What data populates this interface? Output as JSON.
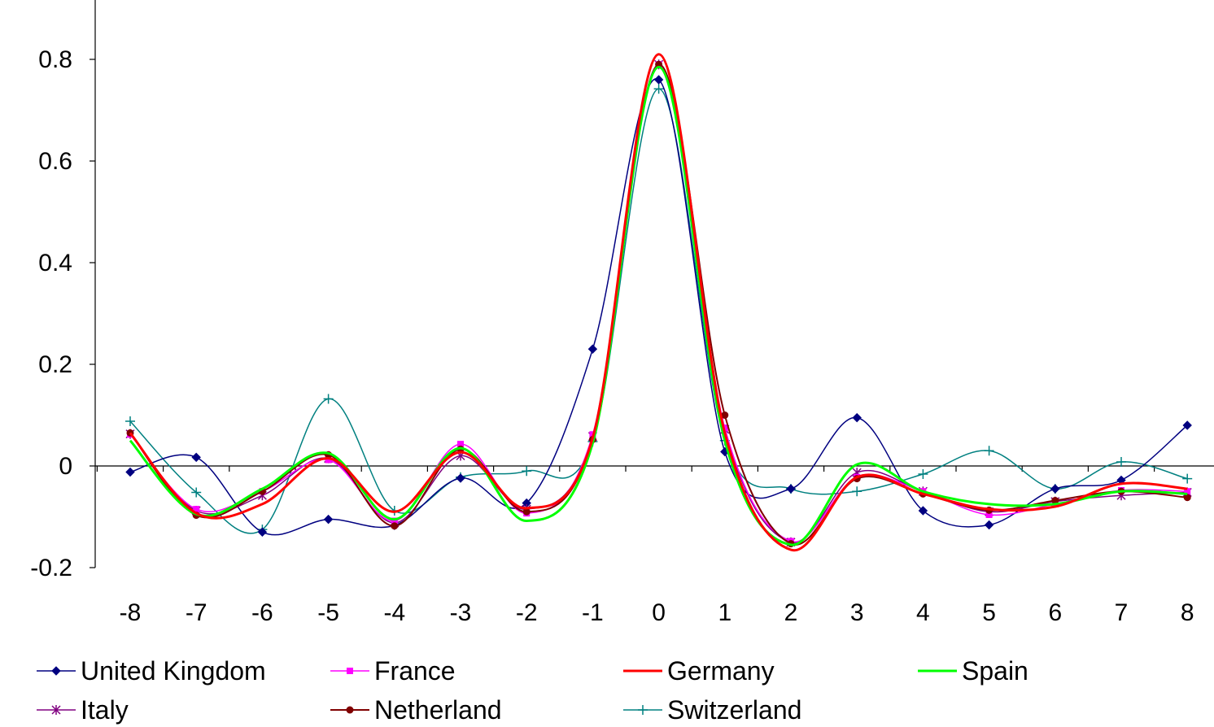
{
  "chart_data": {
    "type": "line",
    "title": "",
    "xlabel": "",
    "ylabel": "",
    "x": [
      -8,
      -7,
      -6,
      -5,
      -4,
      -3,
      -2,
      -1,
      0,
      1,
      2,
      3,
      4,
      5,
      6,
      7,
      8
    ],
    "x_tick_labels": [
      "-8",
      "-7",
      "-6",
      "-5",
      "-4",
      "-3",
      "-2",
      "-1",
      "0",
      "1",
      "2",
      "3",
      "4",
      "5",
      "6",
      "7",
      "8"
    ],
    "y_tick_labels": [
      "-0.2",
      "0",
      "0.2",
      "0.4",
      "0.6",
      "0.8"
    ],
    "y_ticks": [
      -0.2,
      0,
      0.2,
      0.4,
      0.6,
      0.8
    ],
    "ylim": [
      -0.2,
      0.9
    ],
    "xlim": [
      -8.5,
      8.5
    ],
    "grid": false,
    "legend_position": "bottom",
    "series": [
      {
        "name": "United Kingdom",
        "color": "#000080",
        "marker": "diamond",
        "width": 1.5,
        "values": [
          -0.012,
          0.017,
          -0.13,
          -0.105,
          -0.117,
          -0.024,
          -0.073,
          0.23,
          0.76,
          0.028,
          -0.045,
          0.095,
          -0.088,
          -0.116,
          -0.045,
          -0.028,
          0.08
        ]
      },
      {
        "name": "France",
        "color": "#ff00ff",
        "marker": "square",
        "width": 1.5,
        "values": [
          0.062,
          -0.085,
          -0.05,
          0.012,
          -0.108,
          0.043,
          -0.093,
          0.062,
          0.79,
          0.075,
          -0.148,
          -0.022,
          -0.05,
          -0.096,
          -0.075,
          -0.048,
          -0.05
        ]
      },
      {
        "name": "Germany",
        "color": "#ff0000",
        "marker": "none",
        "width": 3,
        "values": [
          0.065,
          -0.093,
          -0.075,
          0.015,
          -0.09,
          0.027,
          -0.083,
          0.055,
          0.81,
          0.065,
          -0.165,
          -0.022,
          -0.055,
          -0.085,
          -0.08,
          -0.035,
          -0.045
        ]
      },
      {
        "name": "Spain",
        "color": "#00ff00",
        "marker": "none",
        "width": 3,
        "values": [
          0.05,
          -0.095,
          -0.045,
          0.025,
          -0.105,
          0.035,
          -0.108,
          0.045,
          0.785,
          0.05,
          -0.155,
          0.003,
          -0.05,
          -0.075,
          -0.075,
          -0.05,
          -0.055
        ]
      },
      {
        "name": "Italy",
        "color": "#800080",
        "marker": "star",
        "width": 1.5,
        "values": [
          0.063,
          -0.088,
          -0.058,
          0.015,
          -0.112,
          0.02,
          -0.085,
          0.058,
          0.79,
          0.072,
          -0.15,
          -0.013,
          -0.05,
          -0.09,
          -0.07,
          -0.058,
          -0.052
        ]
      },
      {
        "name": "Netherland",
        "color": "#800000",
        "marker": "circle",
        "width": 2,
        "values": [
          0.065,
          -0.097,
          -0.05,
          0.022,
          -0.118,
          0.033,
          -0.09,
          0.052,
          0.79,
          0.1,
          -0.153,
          -0.025,
          -0.055,
          -0.087,
          -0.068,
          -0.05,
          -0.062
        ]
      },
      {
        "name": "Switzerland",
        "color": "#008080",
        "marker": "plus",
        "width": 1.5,
        "values": [
          0.088,
          -0.052,
          -0.125,
          0.132,
          -0.088,
          -0.022,
          -0.01,
          0.048,
          0.742,
          0.05,
          -0.045,
          -0.05,
          -0.016,
          0.03,
          -0.045,
          0.008,
          -0.025
        ]
      }
    ]
  }
}
